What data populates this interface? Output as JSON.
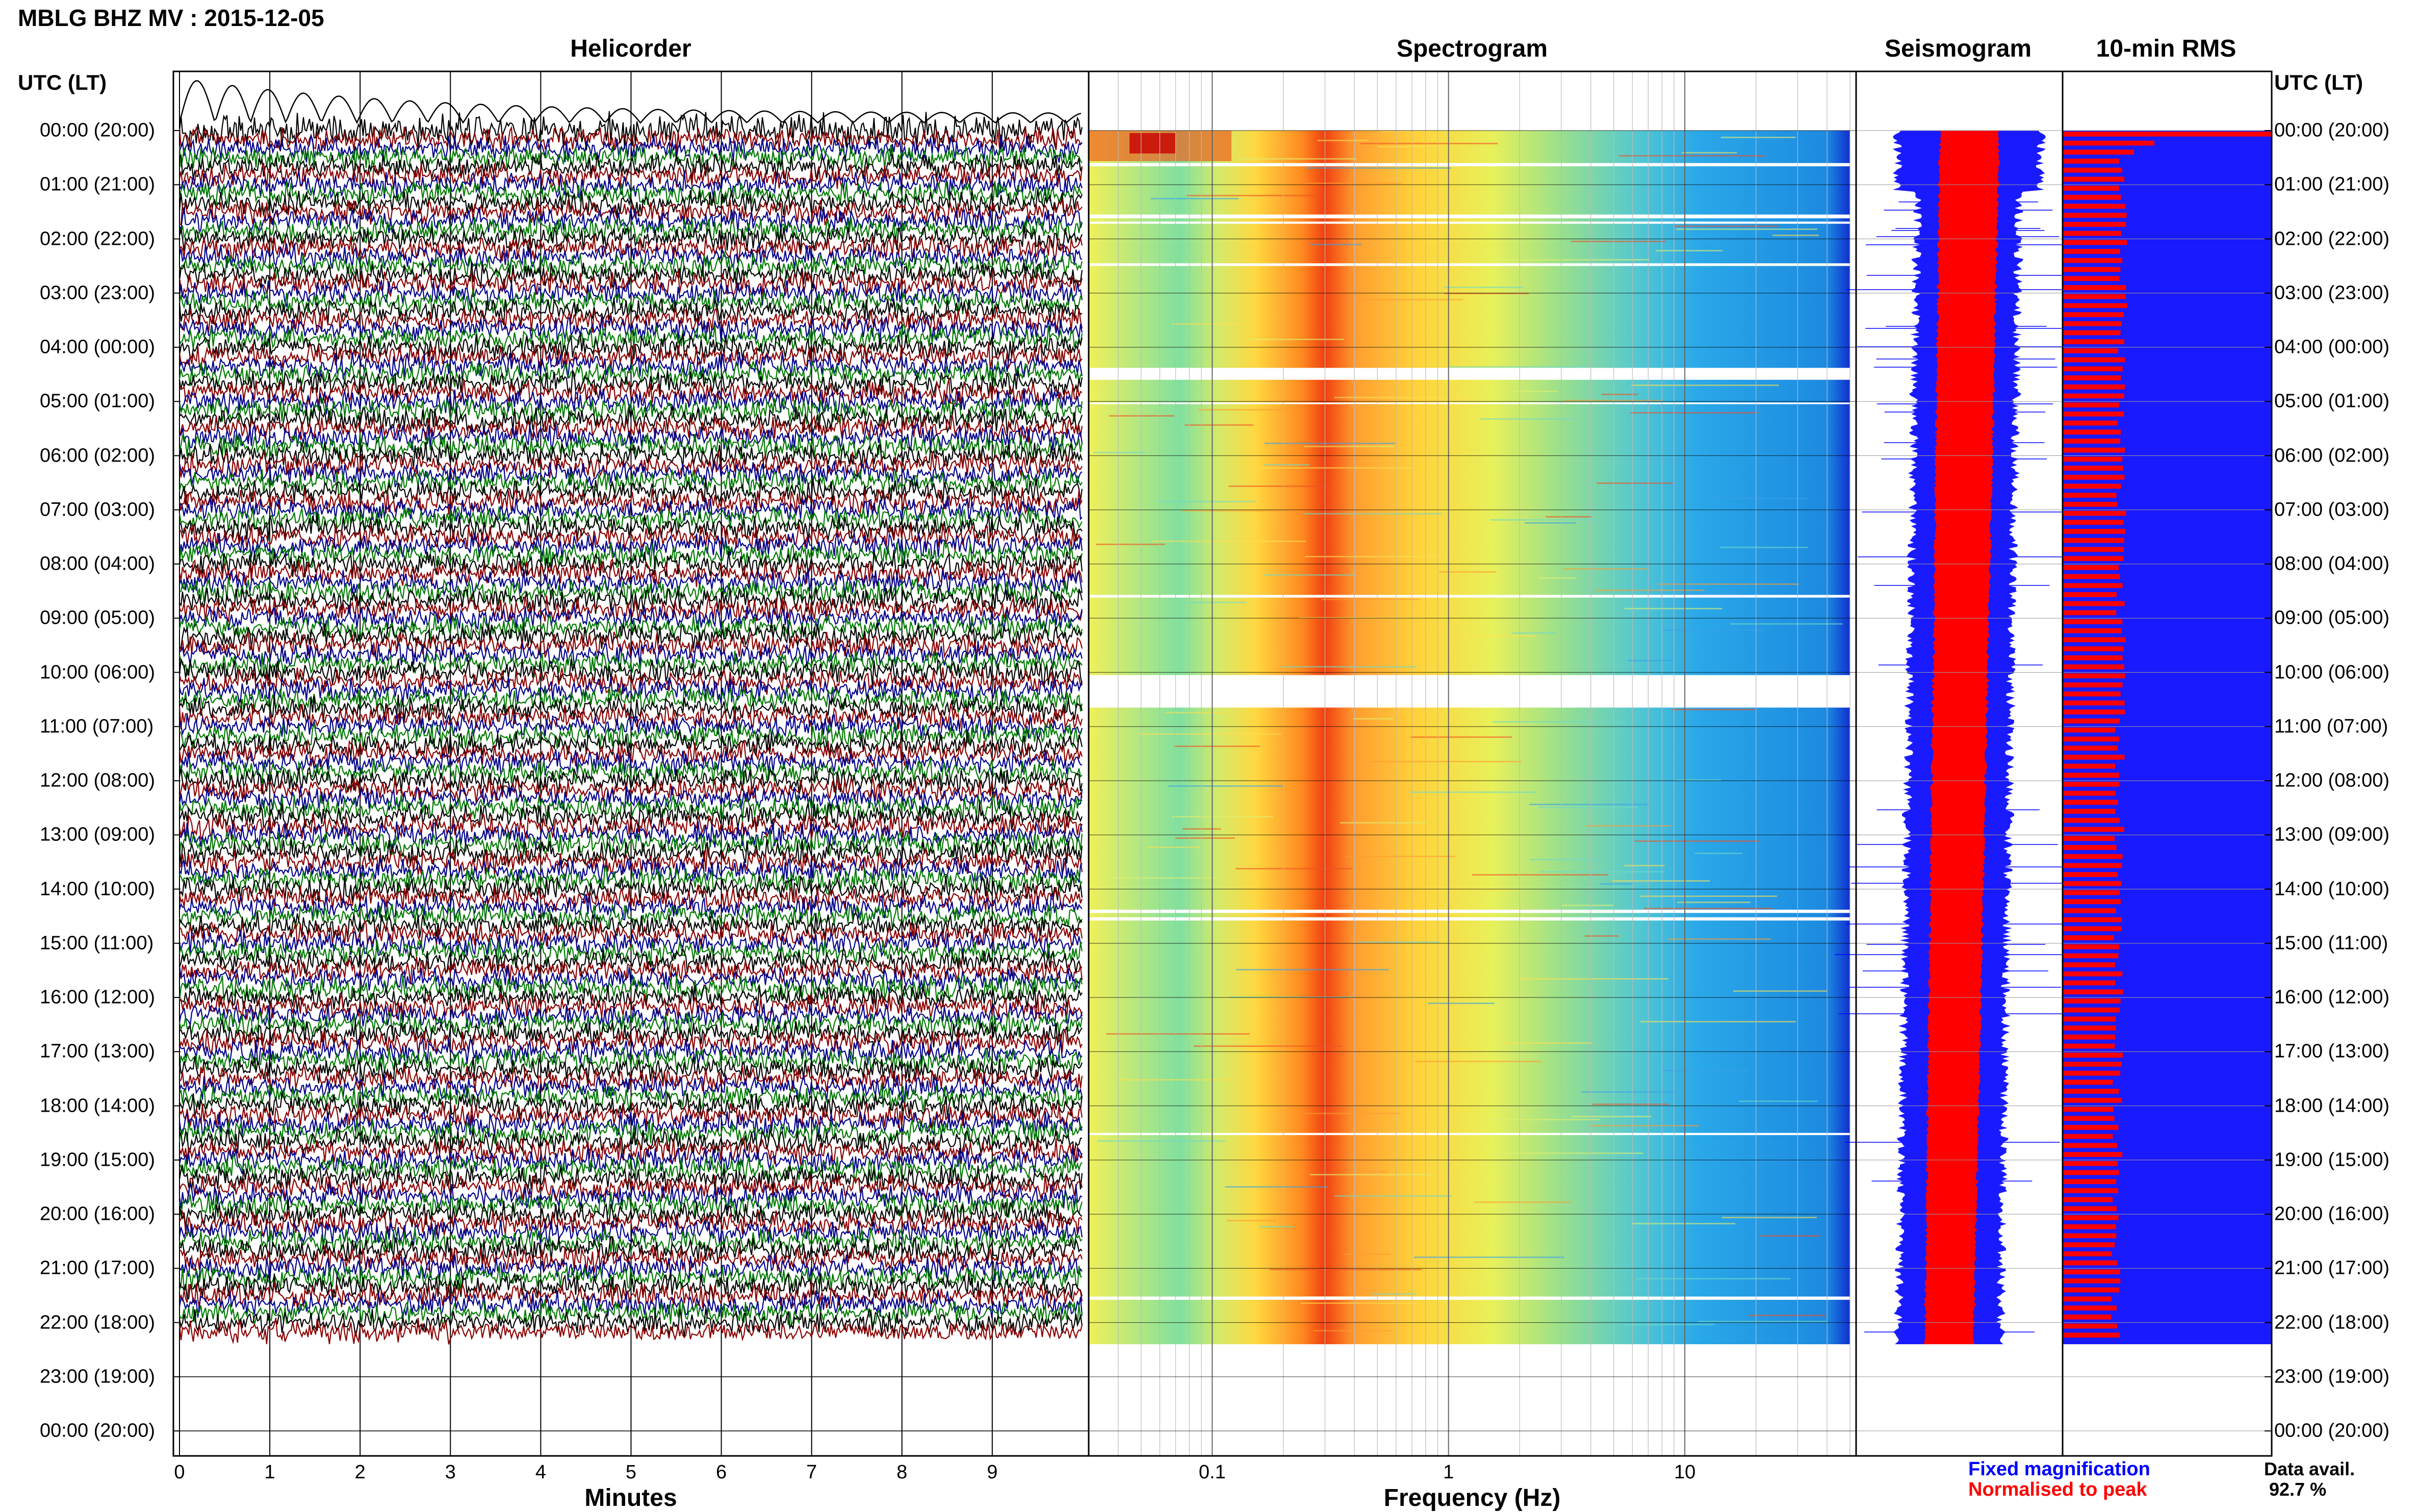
{
  "title": "MBLG BHZ MV : 2015-12-05",
  "panels": {
    "helicorder": "Helicorder",
    "spectrogram": "Spectrogram",
    "seismogram": "Seismogram",
    "rms": "10-min RMS"
  },
  "time_axis_label": "UTC (LT)",
  "time_labels": [
    "00:00 (20:00)",
    "01:00 (21:00)",
    "02:00 (22:00)",
    "03:00 (23:00)",
    "04:00 (00:00)",
    "05:00 (01:00)",
    "06:00 (02:00)",
    "07:00 (03:00)",
    "08:00 (04:00)",
    "09:00 (05:00)",
    "10:00 (06:00)",
    "11:00 (07:00)",
    "12:00 (08:00)",
    "13:00 (09:00)",
    "14:00 (10:00)",
    "15:00 (11:00)",
    "16:00 (12:00)",
    "17:00 (13:00)",
    "18:00 (14:00)",
    "19:00 (15:00)",
    "20:00 (16:00)",
    "21:00 (17:00)",
    "22:00 (18:00)",
    "23:00 (19:00)",
    "00:00 (20:00)"
  ],
  "helicorder": {
    "xlabel": "Minutes",
    "ticks": [
      "0",
      "1",
      "2",
      "3",
      "4",
      "5",
      "6",
      "7",
      "8",
      "9"
    ]
  },
  "spectrogram": {
    "xlabel": "Frequency (Hz)",
    "ticks": [
      "0.1",
      "1",
      "10"
    ]
  },
  "legend": {
    "fixed": "Fixed magnification",
    "normalised": "Normalised to peak"
  },
  "data_availability": {
    "label": "Data avail.",
    "value": "92.7 %"
  },
  "colors": {
    "trace_cycle": [
      "#000000",
      "#8b0000",
      "#00008b",
      "#007a00"
    ],
    "fixed": "#0000ff",
    "normalised": "#ff0000"
  },
  "chart_data": {
    "type": "heatmap",
    "title": "MBLG BHZ MV : 2015-12-05",
    "panels": [
      "Helicorder",
      "Spectrogram",
      "Seismogram",
      "10-min RMS"
    ],
    "y_axis": "UTC (LT)",
    "y_range_hours": [
      0,
      24
    ],
    "data_end_hour": 22.4,
    "helicorder_x_range_minutes": [
      0,
      10
    ],
    "spectrogram_x_range_hz": [
      0.03,
      50
    ],
    "spectrogram_x_scale": "log",
    "rms_series": [
      {
        "name": "Fixed magnification",
        "color": "#0000ff"
      },
      {
        "name": "Normalised to peak",
        "color": "#ff0000"
      }
    ],
    "data_availability_percent": 92.7
  }
}
